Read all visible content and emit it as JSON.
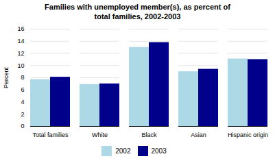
{
  "chart_data": {
    "type": "bar",
    "title": "Families with unemployed member(s), as percent of\ntotal families, 2002-2003",
    "ylabel": "Percent",
    "categories": [
      "Total families",
      "White",
      "Black",
      "Asian",
      "Hispanic origin"
    ],
    "series": [
      {
        "name": "2002",
        "color": "#ADD8E6",
        "values": [
          7.7,
          6.9,
          13.0,
          9.0,
          11.1
        ]
      },
      {
        "name": "2003",
        "color": "#00008B",
        "values": [
          8.1,
          7.0,
          13.8,
          9.4,
          11.0
        ]
      }
    ],
    "ylim": [
      0,
      16
    ],
    "yticks": [
      0,
      2,
      4,
      6,
      8,
      10,
      12,
      14,
      16
    ],
    "grid": true,
    "legend": "bottom"
  }
}
